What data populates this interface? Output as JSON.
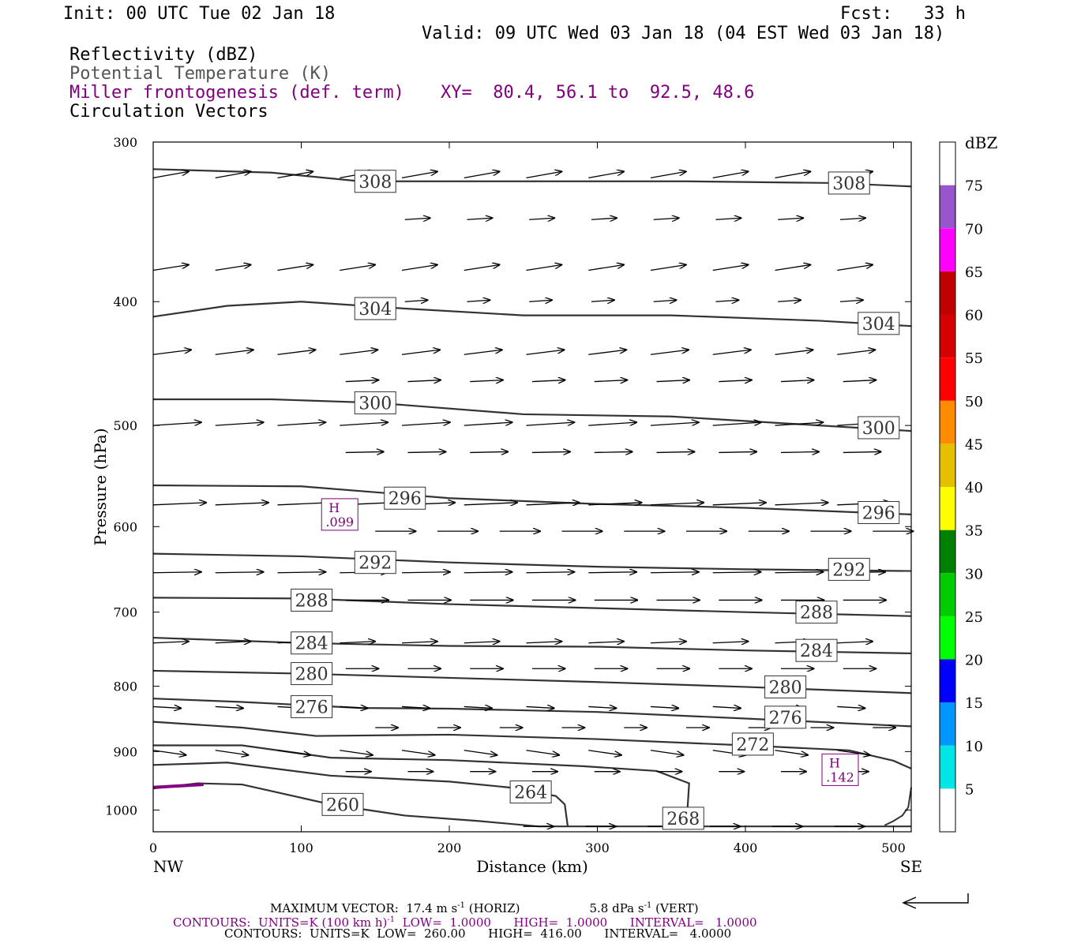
{
  "header": {
    "init": "Init: 00 UTC Tue 02 Jan 18",
    "fcst": "Fcst:   33 h",
    "valid": "Valid: 09 UTC Wed 03 Jan 18 (04 EST Wed 03 Jan 18)",
    "fields": [
      "Reflectivity (dBZ)",
      "Potential Temperature (K)",
      "Miller frontogenesis (def. term)",
      "Circulation Vectors"
    ],
    "xy_label": "XY=  80.4, 56.1 to  92.5, 48.6"
  },
  "footer": {
    "max_vector_prefix": "MAXIMUM VECTOR:  17.4 m s",
    "max_vector_horiz": "(HORIZ)",
    "max_vector_vert": "5.8 dPa s",
    "max_vector_vert_suffix": "(VERT)",
    "contours1_prefix": "CONTOURS:  UNITS=K (100 km h)",
    "contours1_rest": "LOW=  1.0000      HIGH=  1.0000      INTERVAL=   1.0000",
    "contours2": "CONTOURS:  UNITS=K  LOW=  260.00      HIGH=  416.00      INTERVAL=   4.0000"
  },
  "colors": {
    "theta": "#333333",
    "purple": "#800080",
    "axis": "#000000"
  },
  "chart_data": {
    "type": "cross-section",
    "xlabel": "Distance (km)",
    "ylabel": "Pressure (hPa)",
    "x_ticks": [
      0,
      100,
      200,
      300,
      400,
      500
    ],
    "y_ticks": [
      300,
      400,
      500,
      600,
      700,
      800,
      900,
      1000
    ],
    "xlim": [
      0,
      512
    ],
    "ylim": [
      300,
      1040
    ],
    "y_scale": "log",
    "end_labels": {
      "left": "NW",
      "right": "SE"
    },
    "colorbar": {
      "title": "dBZ",
      "levels": [
        5,
        10,
        15,
        20,
        25,
        30,
        35,
        40,
        45,
        50,
        55,
        60,
        65,
        70,
        75
      ],
      "colors": [
        "#ffffff",
        "#00e5e5",
        "#0096ff",
        "#0000ff",
        "#00ff00",
        "#00cc00",
        "#008000",
        "#ffff00",
        "#e5bf00",
        "#ff8c00",
        "#ff0000",
        "#d60000",
        "#c00000",
        "#ff00ff",
        "#9955cc",
        "#ffffff"
      ]
    },
    "theta_contours": [
      {
        "value": 308,
        "label": "308",
        "points": [
          [
            0,
            315
          ],
          [
            40,
            316
          ],
          [
            80,
            317
          ],
          [
            140,
            322
          ],
          [
            250,
            322
          ],
          [
            360,
            322
          ],
          [
            460,
            323
          ],
          [
            512,
            325
          ]
        ]
      },
      {
        "value": 304,
        "label": "304",
        "points": [
          [
            0,
            411
          ],
          [
            50,
            403
          ],
          [
            100,
            400
          ],
          [
            170,
            405
          ],
          [
            250,
            410
          ],
          [
            350,
            410
          ],
          [
            450,
            414
          ],
          [
            512,
            418
          ]
        ]
      },
      {
        "value": 300,
        "label": "300",
        "points": [
          [
            0,
            477
          ],
          [
            80,
            477
          ],
          [
            150,
            480
          ],
          [
            250,
            490
          ],
          [
            350,
            492
          ],
          [
            450,
            500
          ],
          [
            512,
            505
          ]
        ]
      },
      {
        "value": 296,
        "label": "296",
        "points": [
          [
            0,
            557
          ],
          [
            100,
            558
          ],
          [
            200,
            570
          ],
          [
            300,
            576
          ],
          [
            400,
            580
          ],
          [
            512,
            587
          ]
        ]
      },
      {
        "value": 292,
        "label": "292",
        "points": [
          [
            0,
            630
          ],
          [
            100,
            633
          ],
          [
            200,
            640
          ],
          [
            300,
            645
          ],
          [
            400,
            648
          ],
          [
            512,
            650
          ]
        ]
      },
      {
        "value": 288,
        "label": "288",
        "points": [
          [
            0,
            682
          ],
          [
            100,
            683
          ],
          [
            200,
            690
          ],
          [
            300,
            695
          ],
          [
            400,
            700
          ],
          [
            512,
            705
          ]
        ]
      },
      {
        "value": 284,
        "label": "284",
        "points": [
          [
            0,
            733
          ],
          [
            100,
            740
          ],
          [
            200,
            744
          ],
          [
            300,
            745
          ],
          [
            400,
            750
          ],
          [
            512,
            754
          ]
        ]
      },
      {
        "value": 280,
        "label": "280",
        "points": [
          [
            0,
            778
          ],
          [
            100,
            782
          ],
          [
            200,
            788
          ],
          [
            300,
            794
          ],
          [
            400,
            801
          ],
          [
            512,
            810
          ]
        ]
      },
      {
        "value": 276,
        "label": "276",
        "points": [
          [
            0,
            818
          ],
          [
            60,
            823
          ],
          [
            140,
            832
          ],
          [
            200,
            833
          ],
          [
            300,
            838
          ],
          [
            400,
            848
          ],
          [
            512,
            860
          ]
        ]
      },
      {
        "value": 272,
        "label": "272",
        "points": [
          [
            0,
            853
          ],
          [
            60,
            862
          ],
          [
            110,
            875
          ],
          [
            200,
            873
          ],
          [
            300,
            880
          ],
          [
            400,
            890
          ],
          [
            470,
            898
          ],
          [
            500,
            915
          ],
          [
            512,
            928
          ]
        ]
      },
      {
        "value": 268,
        "label": "268",
        "points": [
          [
            0,
            890
          ],
          [
            60,
            890
          ],
          [
            120,
            910
          ],
          [
            200,
            914
          ],
          [
            290,
            924
          ],
          [
            340,
            932
          ],
          [
            362,
            953
          ],
          [
            360,
            1035
          ]
        ]
      },
      {
        "value": 264,
        "label": "264",
        "points": [
          [
            0,
            922
          ],
          [
            50,
            918
          ],
          [
            120,
            940
          ],
          [
            200,
            950
          ],
          [
            240,
            960
          ],
          [
            272,
            975
          ],
          [
            278,
            990
          ],
          [
            280,
            1030
          ]
        ]
      },
      {
        "value": 260,
        "label": "260",
        "points": [
          [
            0,
            962
          ],
          [
            30,
            953
          ],
          [
            60,
            955
          ],
          [
            120,
            990
          ],
          [
            170,
            1010
          ],
          [
            220,
            1020
          ],
          [
            260,
            1030
          ],
          [
            512,
            1030
          ]
        ]
      }
    ],
    "extra_contours": [
      {
        "points": [
          [
            494,
            1028
          ],
          [
            500,
            1020
          ],
          [
            506,
            1010
          ],
          [
            510,
            995
          ],
          [
            512,
            960
          ]
        ]
      }
    ],
    "frontogenesis_maxima": [
      {
        "label": "H",
        "value": ".099",
        "x": 126,
        "p": 587
      },
      {
        "label": "H",
        "value": ".142",
        "x": 464,
        "p": 930
      }
    ],
    "frontogenesis_segment": [
      [
        0,
        960
      ],
      [
        34,
        955
      ]
    ],
    "vector_rows": [
      {
        "p": 320,
        "start": 0,
        "u": 28,
        "w": 8,
        "dx": 42,
        "count": 12
      },
      {
        "p": 345,
        "start": 170,
        "u": 20,
        "w": 2,
        "dx": 42,
        "count": 9
      },
      {
        "p": 378,
        "start": 0,
        "u": 28,
        "w": 7,
        "dx": 42,
        "count": 12
      },
      {
        "p": 400,
        "start": 170,
        "u": 18,
        "w": 2,
        "dx": 42,
        "count": 9
      },
      {
        "p": 440,
        "start": 0,
        "u": 30,
        "w": 6,
        "dx": 42,
        "count": 12
      },
      {
        "p": 462,
        "start": 130,
        "u": 26,
        "w": 2,
        "dx": 42,
        "count": 10
      },
      {
        "p": 500,
        "start": 0,
        "u": 38,
        "w": 4,
        "dx": 42,
        "count": 12
      },
      {
        "p": 525,
        "start": 130,
        "u": 30,
        "w": 1,
        "dx": 42,
        "count": 10
      },
      {
        "p": 577,
        "start": 0,
        "u": 42,
        "w": 3,
        "dx": 42,
        "count": 12
      },
      {
        "p": 605,
        "start": 150,
        "u": 32,
        "w": 0,
        "dx": 42,
        "count": 10
      },
      {
        "p": 652,
        "start": 0,
        "u": 38,
        "w": 1,
        "dx": 42,
        "count": 12
      },
      {
        "p": 685,
        "start": 130,
        "u": 34,
        "w": 0,
        "dx": 42,
        "count": 10
      },
      {
        "p": 740,
        "start": 0,
        "u": 28,
        "w": 2,
        "dx": 42,
        "count": 12
      },
      {
        "p": 775,
        "start": 130,
        "u": 26,
        "w": 0,
        "dx": 42,
        "count": 10
      },
      {
        "p": 830,
        "start": 0,
        "u": 22,
        "w": -2,
        "dx": 42,
        "count": 12
      },
      {
        "p": 862,
        "start": 150,
        "u": 18,
        "w": 0,
        "dx": 42,
        "count": 10
      },
      {
        "p": 898,
        "start": 0,
        "u": 26,
        "w": -6,
        "dx": 42,
        "count": 12
      },
      {
        "p": 933,
        "start": 130,
        "u": 20,
        "w": 0,
        "dx": 42,
        "count": 10
      },
      {
        "p": 1030,
        "start": 250,
        "u": 24,
        "w": 0,
        "dx": 42,
        "count": 6
      }
    ]
  }
}
